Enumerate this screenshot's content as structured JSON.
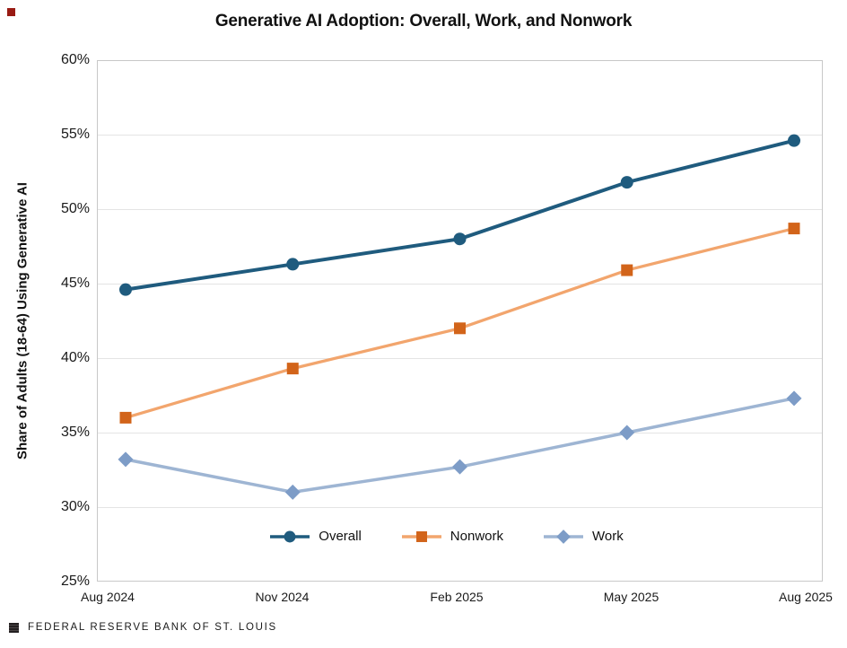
{
  "chart_data": {
    "type": "line",
    "title": "Generative AI Adoption: Overall, Work, and Nonwork",
    "xlabel": "",
    "ylabel": "Share of Adults (18-64) Using Generative AI",
    "categories": [
      "Aug 2024",
      "Nov 2024",
      "Feb 2025",
      "May 2025",
      "Aug 2025"
    ],
    "series": [
      {
        "name": "Overall",
        "marker": "circle",
        "line_color": "#1f5b7e",
        "marker_color": "#1f5b7e",
        "values": [
          44.6,
          46.3,
          48.0,
          51.8,
          54.6
        ]
      },
      {
        "name": "Nonwork",
        "marker": "square",
        "line_color": "#f2a56d",
        "marker_color": "#d2641a",
        "values": [
          36.0,
          39.3,
          42.0,
          45.9,
          48.7
        ]
      },
      {
        "name": "Work",
        "marker": "diamond",
        "line_color": "#9eb5d3",
        "marker_color": "#7d9cc7",
        "values": [
          33.2,
          31.0,
          32.7,
          35.0,
          37.3
        ]
      }
    ],
    "ylim": [
      25,
      60
    ],
    "ytick_step": 5,
    "ytick_labels": [
      "25%",
      "30%",
      "35%",
      "40%",
      "45%",
      "50%",
      "55%",
      "60%"
    ],
    "grid": true,
    "legend_position": "bottom-center-inside-plot",
    "legend": [
      "Overall",
      "Nonwork",
      "Work"
    ]
  },
  "colors": {
    "grid": "#e4e4e4",
    "plot_border": "#c8c8c8",
    "title_text": "#111111",
    "tick_text": "#1a1a1a",
    "corner_mark": "#991b13",
    "footer_logo": "#242021"
  },
  "footer": {
    "logo": "federal-reserve-st-louis-square-mark",
    "text": "FEDERAL RESERVE BANK OF ST. LOUIS"
  }
}
